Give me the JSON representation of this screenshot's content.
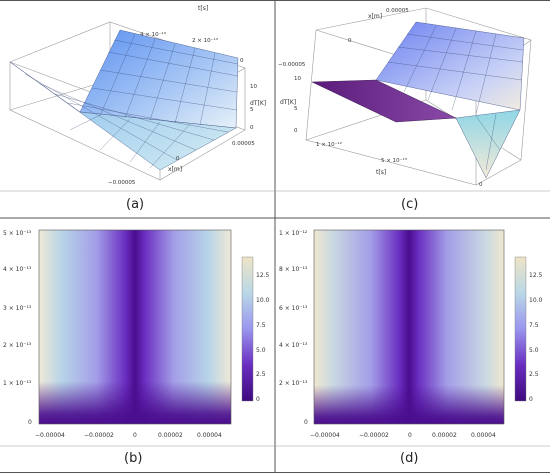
{
  "captions": {
    "a": "(a)",
    "b": "(b)",
    "c": "(c)",
    "d": "(d)"
  },
  "panel_a": {
    "t_label": "t[s]",
    "dt_label": "dT[K]",
    "x_label": "x[m]",
    "t_ticks": [
      "4 × 10⁻¹³",
      "2 × 10⁻¹³",
      "0"
    ],
    "dt_ticks": [
      "10",
      "5",
      "0"
    ],
    "x_ticks": [
      "−0.00005",
      "0",
      "0.00005"
    ]
  },
  "panel_c": {
    "x_label": "x[m]",
    "dt_label": "dT[K]",
    "t_label": "t[s]",
    "x_ticks": [
      "0.00005",
      "0",
      "−0.00005"
    ],
    "dt_ticks": [
      "10",
      "5",
      "0"
    ],
    "t_ticks": [
      "1 × 10⁻¹²",
      "5 × 10⁻¹³",
      "0"
    ]
  },
  "panel_b": {
    "y_ticks": [
      "5 × 10⁻¹³",
      "4 × 10⁻¹³",
      "3 × 10⁻¹³",
      "2 × 10⁻¹³",
      "1 × 10⁻¹³",
      "0"
    ],
    "x_ticks": [
      "−0.00004",
      "−0.00002",
      "0",
      "0.00002",
      "0.00004"
    ],
    "legend_ticks": [
      "12.5",
      "10.0",
      "7.5",
      "5.0",
      "2.5",
      "0"
    ]
  },
  "panel_d": {
    "y_ticks": [
      "1 × 10⁻¹²",
      "8 × 10⁻¹³",
      "6 × 10⁻¹³",
      "4 × 10⁻¹³",
      "2 × 10⁻¹³",
      "0"
    ],
    "x_ticks": [
      "−0.00004",
      "−0.00002",
      "0",
      "0.00002",
      "0.00004"
    ],
    "legend_ticks": [
      "12.5",
      "10.0",
      "7.5",
      "5.0",
      "2.5",
      "0"
    ]
  },
  "colors": {
    "low": "#4b0f8f",
    "mid": "#a7a0ef",
    "high": "#f0e6d0",
    "frame": "#555555"
  }
}
